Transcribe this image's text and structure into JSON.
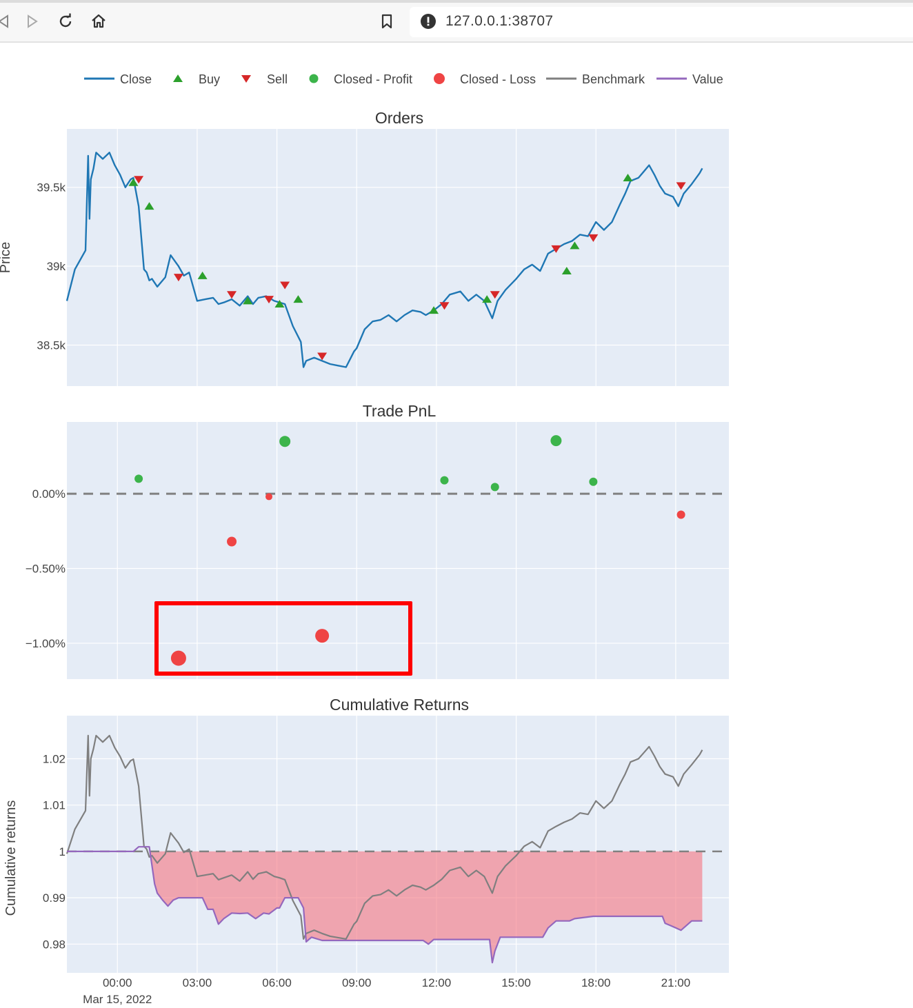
{
  "browser": {
    "url": "127.0.0.1:38707",
    "icons": [
      "back-icon",
      "forward-icon",
      "reload-icon",
      "home-icon",
      "bookmark-icon",
      "site-info-icon"
    ]
  },
  "legend": [
    {
      "label": "Close",
      "symbol": "line",
      "color": "#1f77b4"
    },
    {
      "label": "Buy",
      "symbol": "triangle-up",
      "color": "#2ca02c"
    },
    {
      "label": "Sell",
      "symbol": "triangle-down",
      "color": "#d62728"
    },
    {
      "label": "Closed - Profit",
      "symbol": "circle",
      "color": "#3cb44b"
    },
    {
      "label": "Closed - Loss",
      "symbol": "circle",
      "color": "#ef4444"
    },
    {
      "label": "Benchmark",
      "symbol": "line",
      "color": "#7f7f7f"
    },
    {
      "label": "Value",
      "symbol": "line",
      "color": "#9467bd"
    }
  ],
  "x_axis": {
    "ticks": [
      "00:00",
      "03:00",
      "06:00",
      "09:00",
      "12:00",
      "15:00",
      "18:00",
      "21:00"
    ],
    "tick_hours": [
      0,
      3,
      6,
      9,
      12,
      15,
      18,
      21
    ],
    "date_label": "Mar 15, 2022",
    "range_hours": [
      -1.9,
      23
    ]
  },
  "chart_data": [
    {
      "type": "line",
      "title": "Orders",
      "ylabel": "Price",
      "ylim": [
        38240,
        39870
      ],
      "yticks": [
        38500,
        39000,
        39500
      ],
      "yticklabels": [
        "38.5k",
        "39k",
        "39.5k"
      ],
      "series": [
        {
          "name": "Close",
          "x": [
            -1.9,
            -1.6,
            -1.2,
            -1.1,
            -1.05,
            -1.0,
            -0.9,
            -0.8,
            -0.55,
            -0.3,
            -0.1,
            0.1,
            0.3,
            0.5,
            0.6,
            0.8,
            1.0,
            1.1,
            1.2,
            1.3,
            1.5,
            1.8,
            2.0,
            2.3,
            2.5,
            2.7,
            3.0,
            3.3,
            3.6,
            3.8,
            4.0,
            4.3,
            4.6,
            4.9,
            5.1,
            5.3,
            5.6,
            5.9,
            6.1,
            6.3,
            6.6,
            6.9,
            7.0,
            7.1,
            7.4,
            7.7,
            8.0,
            8.3,
            8.6,
            8.9,
            9.0,
            9.3,
            9.6,
            9.9,
            10.2,
            10.5,
            10.8,
            11.1,
            11.4,
            11.6,
            11.9,
            12.2,
            12.5,
            12.9,
            13.2,
            13.5,
            13.8,
            14.1,
            14.3,
            14.6,
            15.0,
            15.3,
            15.6,
            15.9,
            16.2,
            16.5,
            16.8,
            17.1,
            17.4,
            17.7,
            18.0,
            18.3,
            18.6,
            18.9,
            19.1,
            19.3,
            19.6,
            19.8,
            20.0,
            20.2,
            20.4,
            20.6,
            20.9,
            21.1,
            21.3,
            21.6,
            21.9,
            22.0
          ],
          "y": [
            38780,
            38980,
            39100,
            39700,
            39300,
            39550,
            39620,
            39720,
            39680,
            39720,
            39640,
            39580,
            39500,
            39550,
            39560,
            39380,
            38980,
            38960,
            38910,
            38920,
            38870,
            38930,
            39070,
            39000,
            38940,
            38960,
            38780,
            38790,
            38800,
            38760,
            38770,
            38790,
            38750,
            38810,
            38760,
            38800,
            38810,
            38780,
            38770,
            38760,
            38620,
            38520,
            38360,
            38400,
            38420,
            38400,
            38380,
            38370,
            38360,
            38460,
            38480,
            38600,
            38650,
            38660,
            38690,
            38650,
            38690,
            38720,
            38710,
            38690,
            38720,
            38760,
            38820,
            38840,
            38780,
            38820,
            38780,
            38670,
            38780,
            38850,
            38920,
            38980,
            39010,
            38970,
            39080,
            39110,
            39140,
            39160,
            39200,
            39190,
            39280,
            39230,
            39280,
            39390,
            39460,
            39540,
            39560,
            39600,
            39640,
            39580,
            39510,
            39460,
            39440,
            39380,
            39460,
            39520,
            39590,
            39620
          ]
        }
      ],
      "buys": {
        "x": [
          0.6,
          1.2,
          3.2,
          4.9,
          6.1,
          6.8,
          11.9,
          13.9,
          16.9,
          17.2,
          19.2
        ],
        "y": [
          39530,
          39380,
          38940,
          38780,
          38760,
          38790,
          38720,
          38790,
          38970,
          39130,
          39560
        ]
      },
      "sells": {
        "x": [
          0.8,
          2.3,
          4.3,
          5.7,
          6.3,
          7.7,
          12.3,
          14.2,
          16.5,
          17.9,
          21.2
        ],
        "y": [
          39550,
          38930,
          38820,
          38790,
          38880,
          38430,
          38750,
          38820,
          39110,
          39180,
          39510
        ]
      }
    },
    {
      "type": "scatter",
      "title": "Trade PnL",
      "ylabel": "",
      "ylim": [
        -1.24,
        0.48
      ],
      "yticks": [
        0,
        -0.5,
        -1.0
      ],
      "yticklabels": [
        "0.00%",
        "−0.50%",
        "−1.00%"
      ],
      "series": [
        {
          "name": "Closed - Profit",
          "x": [
            0.8,
            6.3,
            12.3,
            14.2,
            16.5,
            17.9
          ],
          "y": [
            0.1,
            0.35,
            0.09,
            0.045,
            0.355,
            0.08
          ],
          "size": [
            6,
            8,
            6,
            6,
            8,
            6
          ]
        },
        {
          "name": "Closed - Loss",
          "x": [
            2.3,
            4.3,
            5.7,
            7.7,
            21.2
          ],
          "y": [
            -1.1,
            -0.32,
            -0.02,
            -0.95,
            -0.14
          ],
          "size": [
            11,
            7,
            5,
            10,
            6
          ]
        }
      ]
    },
    {
      "type": "area",
      "title": "Cumulative Returns",
      "ylabel": "Cumulative returns",
      "ylim": [
        0.9738,
        1.0293
      ],
      "yticks": [
        0.98,
        0.99,
        1,
        1.01,
        1.02
      ],
      "yticklabels": [
        "0.98",
        "0.99",
        "1",
        "1.01",
        "1.02"
      ],
      "series": [
        {
          "name": "Benchmark",
          "x": [
            -1.9,
            -1.6,
            -1.2,
            -1.1,
            -1.05,
            -1.0,
            -0.9,
            -0.8,
            -0.55,
            -0.3,
            -0.1,
            0.1,
            0.3,
            0.5,
            0.6,
            0.8,
            1.0,
            1.1,
            1.2,
            1.3,
            1.5,
            1.8,
            2.0,
            2.3,
            2.5,
            2.7,
            3.0,
            3.3,
            3.6,
            3.8,
            4.0,
            4.3,
            4.6,
            4.9,
            5.1,
            5.3,
            5.6,
            5.9,
            6.1,
            6.3,
            6.6,
            6.9,
            7.0,
            7.1,
            7.4,
            7.7,
            8.0,
            8.3,
            8.6,
            8.9,
            9.0,
            9.3,
            9.6,
            9.9,
            10.2,
            10.5,
            10.8,
            11.1,
            11.4,
            11.6,
            11.9,
            12.2,
            12.5,
            12.9,
            13.2,
            13.5,
            13.8,
            14.1,
            14.3,
            14.6,
            15.0,
            15.3,
            15.6,
            15.9,
            16.2,
            16.5,
            16.8,
            17.1,
            17.4,
            17.7,
            18.0,
            18.3,
            18.6,
            18.9,
            19.1,
            19.3,
            19.6,
            19.8,
            20.0,
            20.2,
            20.4,
            20.6,
            20.9,
            21.1,
            21.3,
            21.6,
            21.9,
            22.0
          ],
          "y": [
            0.9995,
            1.0048,
            1.0088,
            1.025,
            1.012,
            1.02,
            1.0222,
            1.025,
            1.0236,
            1.025,
            1.0224,
            1.0205,
            1.018,
            1.0196,
            1.0199,
            1.0141,
            1.0011,
            1.0005,
            0.9988,
            0.9991,
            0.9975,
            0.9995,
            1.004,
            1.0018,
            0.9998,
            1.0005,
            0.9946,
            0.9949,
            0.9952,
            0.9939,
            0.9943,
            0.9949,
            0.9936,
            0.9956,
            0.994,
            0.9952,
            0.9956,
            0.9946,
            0.9943,
            0.9939,
            0.9894,
            0.9861,
            0.9811,
            0.9823,
            0.983,
            0.9823,
            0.9817,
            0.9814,
            0.9811,
            0.9843,
            0.9849,
            0.9888,
            0.9904,
            0.9907,
            0.9917,
            0.9904,
            0.9917,
            0.9927,
            0.9923,
            0.9917,
            0.9927,
            0.994,
            0.9959,
            0.9966,
            0.9946,
            0.9959,
            0.9946,
            0.991,
            0.9946,
            0.9969,
            0.9991,
            1.0011,
            1.0021,
            1.0008,
            1.0044,
            1.0054,
            1.0063,
            1.007,
            1.0083,
            1.008,
            1.0109,
            1.0093,
            1.0109,
            1.0145,
            1.0167,
            1.0193,
            1.02,
            1.0213,
            1.0226,
            1.0206,
            1.0183,
            1.0167,
            1.0161,
            1.0141,
            1.0167,
            1.0187,
            1.0209,
            1.0219
          ]
        },
        {
          "name": "Value",
          "x": [
            -1.9,
            0.6,
            0.8,
            1.2,
            1.4,
            1.5,
            1.7,
            1.9,
            2.1,
            2.3,
            3.2,
            3.4,
            3.6,
            3.8,
            4.0,
            4.3,
            4.6,
            4.9,
            5.2,
            5.5,
            5.7,
            6.0,
            6.1,
            6.3,
            6.6,
            6.8,
            7.0,
            7.1,
            7.3,
            7.7,
            8.0,
            10.0,
            11.5,
            11.7,
            11.9,
            12.3,
            14.0,
            14.1,
            14.2,
            14.4,
            16.0,
            16.2,
            16.5,
            17.0,
            17.2,
            17.9,
            20.5,
            20.6,
            20.8,
            21.0,
            21.2,
            21.4,
            21.6,
            22.0
          ],
          "y": [
            1.0,
            1.0,
            1.001,
            1.001,
            0.993,
            0.991,
            0.9895,
            0.9882,
            0.9895,
            0.99,
            0.99,
            0.9875,
            0.9875,
            0.9843,
            0.9855,
            0.9867,
            0.9866,
            0.9867,
            0.9855,
            0.9867,
            0.9865,
            0.9878,
            0.9878,
            0.99,
            0.99,
            0.99,
            0.9878,
            0.9805,
            0.9815,
            0.9808,
            0.9808,
            0.9808,
            0.9808,
            0.98,
            0.981,
            0.981,
            0.981,
            0.976,
            0.9785,
            0.9815,
            0.9815,
            0.9835,
            0.985,
            0.985,
            0.9855,
            0.986,
            0.986,
            0.9845,
            0.984,
            0.9835,
            0.983,
            0.984,
            0.985,
            0.985
          ]
        }
      ]
    }
  ]
}
